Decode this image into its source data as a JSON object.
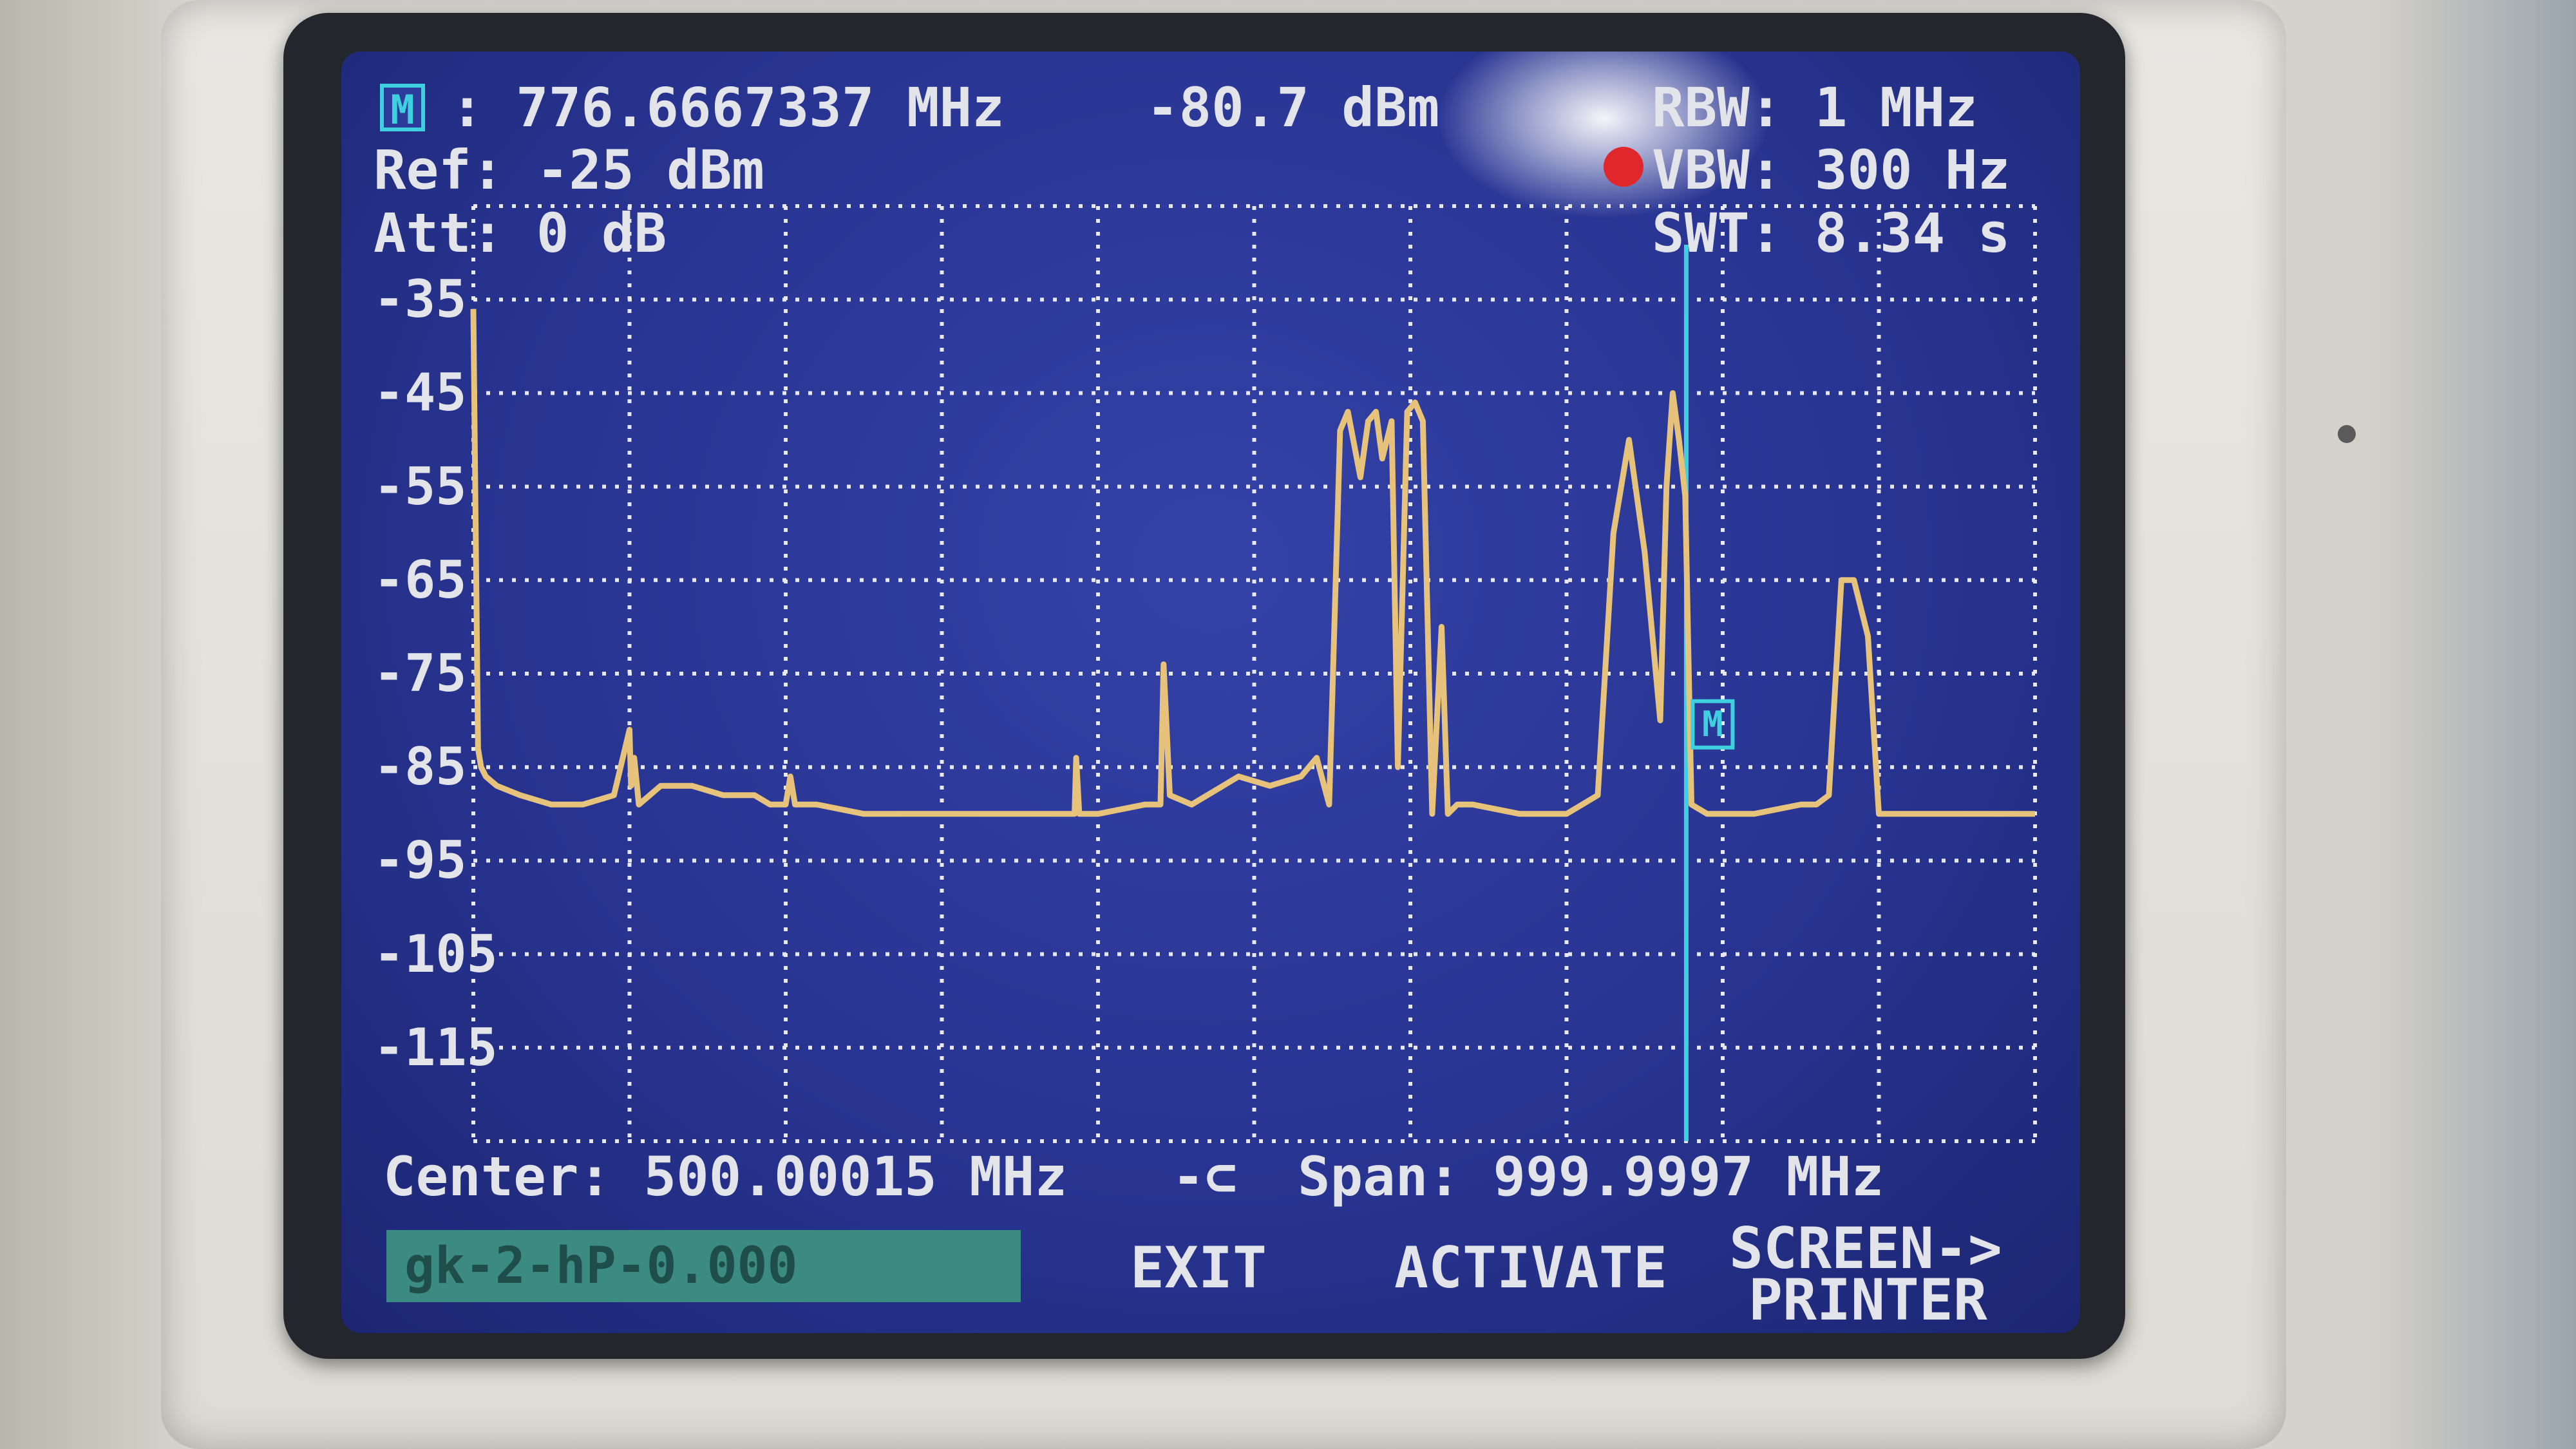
{
  "header": {
    "marker_label": "M",
    "marker_freq": ": 776.6667337 MHz",
    "marker_level": "-80.7 dBm",
    "ref": "Ref: -25 dBm",
    "att": "Att: 0 dB",
    "rbw": "RBW: 1 MHz",
    "vbw": "VBW: 300 Hz",
    "swt": "SWT: 8.34 s"
  },
  "y_axis": {
    "labels": [
      "-35",
      "-45",
      "-55",
      "-65",
      "-75",
      "-85",
      "-95",
      "-105",
      "-115"
    ]
  },
  "footer": {
    "center": "Center: 500.00015 MHz",
    "span_icon": "-⊂",
    "span": "Span: 999.9997 MHz"
  },
  "softkeys": {
    "name_field": "gk-2-hP-0.000",
    "exit": "EXIT",
    "activate": "ACTIVATE",
    "screen_printer_line1": "SCREEN->",
    "screen_printer_line2": "PRINTER"
  },
  "colors": {
    "screen_bg": "#2a3595",
    "trace": "#e6c27a",
    "marker_line": "#3fd0e0",
    "text": "#e3e3ea",
    "vbw_indicator": "#e0282c",
    "name_field_bg": "#3c8b82"
  },
  "chart_data": {
    "type": "line",
    "xlabel": "",
    "ylabel": "",
    "x_unit": "MHz",
    "y_unit": "dBm",
    "xlim": [
      0,
      1000
    ],
    "ylim": [
      -125,
      -25
    ],
    "grid": true,
    "marker": {
      "x": 776.67,
      "y": -80.7
    },
    "series": [
      {
        "x": [
          0,
          3,
          5,
          8,
          15,
          30,
          50,
          70,
          90,
          100,
          101,
          103,
          106,
          120,
          140,
          160,
          170,
          180,
          190,
          200,
          203,
          206,
          220,
          250,
          300,
          385,
          386,
          388,
          400,
          430,
          440,
          442,
          446,
          460,
          470,
          490,
          510,
          530,
          540,
          548,
          555,
          560,
          568,
          573,
          578,
          582,
          588,
          592,
          598,
          603,
          608,
          614,
          620,
          624,
          630,
          640,
          670,
          700,
          720,
          730,
          740,
          750,
          760,
          764,
          768,
          772,
          776,
          780,
          790,
          820,
          850,
          860,
          868,
          876,
          884,
          893,
          900,
          910,
          915,
          930,
          960,
          1000
        ],
        "y": [
          -36,
          -83,
          -85,
          -86,
          -87,
          -88,
          -89,
          -89,
          -88,
          -81,
          -87,
          -84,
          -89,
          -87,
          -87,
          -88,
          -88,
          -88,
          -89,
          -89,
          -86,
          -89,
          -89,
          -90,
          -90,
          -90,
          -84,
          -90,
          -90,
          -89,
          -89,
          -74,
          -88,
          -89,
          -88,
          -86,
          -87,
          -86,
          -84,
          -89,
          -49,
          -47,
          -54,
          -48,
          -47,
          -52,
          -48,
          -85,
          -47,
          -46,
          -48,
          -90,
          -70,
          -90,
          -89,
          -89,
          -90,
          -90,
          -88,
          -60,
          -50,
          -62,
          -80,
          -55,
          -45,
          -50,
          -56,
          -89,
          -90,
          -90,
          -89,
          -89,
          -88,
          -65,
          -65,
          -71,
          -90,
          -90,
          -90,
          -90,
          -90,
          -90
        ]
      }
    ]
  }
}
